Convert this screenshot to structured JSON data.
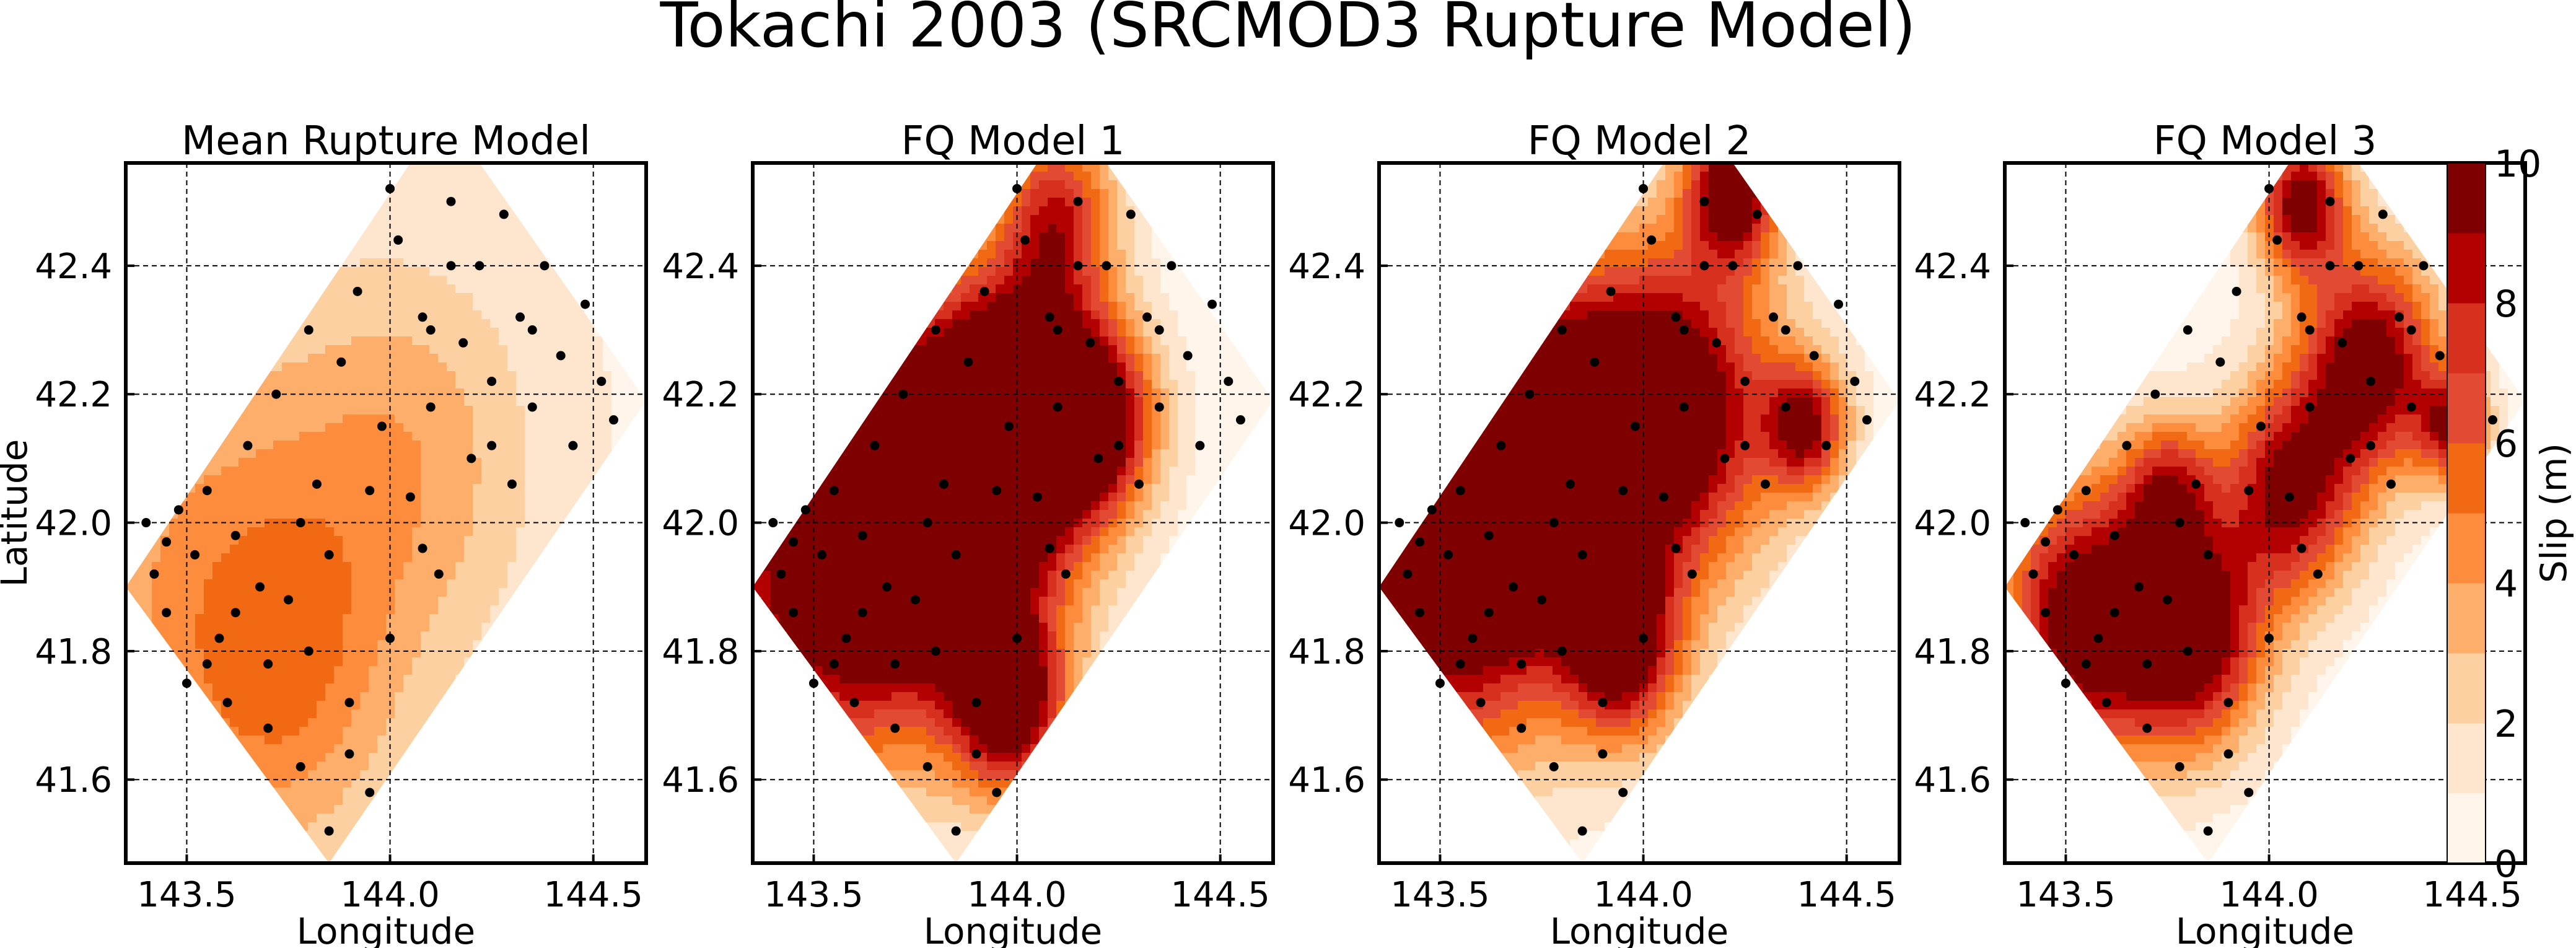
{
  "figure": {
    "title": "Tokachi 2003 (SRCMOD3 Rupture Model)"
  },
  "colorbar": {
    "label": "Slip (m)",
    "ticks": [
      0,
      2,
      4,
      6,
      8,
      10
    ],
    "levels": [
      0,
      1,
      2,
      3,
      4,
      5,
      6,
      7,
      8,
      9,
      10
    ],
    "colors": [
      "#fff5eb",
      "#fee6ce",
      "#fdd0a2",
      "#fdae6b",
      "#fd8d3c",
      "#f16913",
      "#e34a33",
      "#d7301f",
      "#b30000",
      "#7f0000"
    ]
  },
  "chart_data": [
    {
      "type": "heatmap",
      "title": "Mean Rupture Model",
      "xlabel": "Longitude",
      "ylabel": "Latitude",
      "xlim": [
        143.35,
        144.63
      ],
      "ylim": [
        41.47,
        42.56
      ],
      "xticks": [
        "143.5",
        "144.0",
        "144.5"
      ],
      "yticks": [
        "41.6",
        "41.8",
        "42.0",
        "42.2",
        "42.4"
      ],
      "grid": true,
      "fault_outline": [
        [
          143.35,
          41.9
        ],
        [
          143.85,
          41.47
        ],
        [
          144.63,
          42.19
        ],
        [
          144.22,
          42.56
        ],
        [
          144.05,
          42.56
        ]
      ],
      "slip_centers": [
        {
          "lon": 143.55,
          "lat": 41.9,
          "slip": 3.2,
          "spread": 0.3
        },
        {
          "lon": 144.05,
          "lat": 42.1,
          "slip": 2.6,
          "spread": 0.22
        },
        {
          "lon": 143.75,
          "lat": 41.75,
          "slip": 2.4,
          "spread": 0.18
        }
      ],
      "base_slip": 0.8,
      "stations": [
        [
          143.4,
          42.0
        ],
        [
          143.42,
          41.92
        ],
        [
          143.45,
          41.86
        ],
        [
          143.48,
          42.02
        ],
        [
          143.5,
          41.75
        ],
        [
          143.52,
          41.95
        ],
        [
          143.55,
          42.05
        ],
        [
          143.58,
          41.82
        ],
        [
          143.6,
          41.72
        ],
        [
          143.62,
          41.98
        ],
        [
          143.65,
          42.12
        ],
        [
          143.68,
          41.9
        ],
        [
          143.7,
          41.78
        ],
        [
          143.72,
          42.2
        ],
        [
          143.75,
          41.88
        ],
        [
          143.78,
          41.62
        ],
        [
          143.8,
          41.8
        ],
        [
          143.82,
          42.06
        ],
        [
          143.85,
          41.95
        ],
        [
          143.88,
          42.25
        ],
        [
          143.9,
          41.72
        ],
        [
          143.92,
          42.36
        ],
        [
          143.95,
          41.58
        ],
        [
          143.98,
          42.15
        ],
        [
          144.0,
          41.82
        ],
        [
          144.02,
          42.44
        ],
        [
          144.05,
          42.04
        ],
        [
          144.08,
          42.32
        ],
        [
          144.1,
          42.18
        ],
        [
          144.12,
          41.92
        ],
        [
          144.15,
          42.5
        ],
        [
          144.18,
          42.28
        ],
        [
          144.2,
          42.1
        ],
        [
          144.22,
          42.4
        ],
        [
          144.25,
          42.22
        ],
        [
          144.28,
          42.48
        ],
        [
          144.3,
          42.06
        ],
        [
          144.32,
          42.32
        ],
        [
          144.35,
          42.18
        ],
        [
          144.38,
          42.4
        ],
        [
          144.42,
          42.26
        ],
        [
          144.45,
          42.12
        ],
        [
          144.48,
          42.34
        ],
        [
          144.52,
          42.22
        ],
        [
          144.55,
          42.16
        ],
        [
          143.7,
          41.68
        ],
        [
          143.62,
          41.86
        ],
        [
          143.85,
          41.52
        ],
        [
          143.9,
          41.64
        ],
        [
          144.0,
          42.52
        ],
        [
          144.08,
          41.96
        ],
        [
          144.25,
          42.12
        ],
        [
          143.8,
          42.3
        ],
        [
          143.95,
          42.05
        ],
        [
          144.15,
          42.4
        ],
        [
          143.55,
          41.78
        ],
        [
          143.45,
          41.97
        ],
        [
          143.78,
          42.0
        ],
        [
          144.35,
          42.3
        ],
        [
          144.1,
          42.3
        ]
      ]
    },
    {
      "type": "heatmap",
      "title": "FQ Model 1",
      "xlabel": "Longitude",
      "xlim": [
        143.35,
        144.63
      ],
      "ylim": [
        41.47,
        42.56
      ],
      "xticks": [
        "143.5",
        "144.0",
        "144.5"
      ],
      "yticks": [
        "41.6",
        "41.8",
        "42.0",
        "42.2",
        "42.4"
      ],
      "grid": true,
      "fault_outline": [
        [
          143.35,
          41.9
        ],
        [
          143.85,
          41.47
        ],
        [
          144.63,
          42.19
        ],
        [
          144.22,
          42.56
        ],
        [
          144.05,
          42.56
        ]
      ],
      "slip_centers": [
        {
          "lon": 143.55,
          "lat": 41.95,
          "slip": 11.0,
          "spread": 0.22
        },
        {
          "lon": 143.85,
          "lat": 42.05,
          "slip": 10.5,
          "spread": 0.2
        },
        {
          "lon": 144.02,
          "lat": 42.18,
          "slip": 10.0,
          "spread": 0.14
        },
        {
          "lon": 143.98,
          "lat": 41.72,
          "slip": 9.5,
          "spread": 0.1
        },
        {
          "lon": 144.2,
          "lat": 42.16,
          "slip": 8.0,
          "spread": 0.1
        },
        {
          "lon": 144.1,
          "lat": 42.48,
          "slip": 7.0,
          "spread": 0.1
        }
      ],
      "base_slip": 0.3,
      "stations": [
        [
          143.4,
          42.0
        ],
        [
          143.42,
          41.92
        ],
        [
          143.45,
          41.86
        ],
        [
          143.48,
          42.02
        ],
        [
          143.5,
          41.75
        ],
        [
          143.52,
          41.95
        ],
        [
          143.55,
          42.05
        ],
        [
          143.58,
          41.82
        ],
        [
          143.6,
          41.72
        ],
        [
          143.62,
          41.98
        ],
        [
          143.65,
          42.12
        ],
        [
          143.68,
          41.9
        ],
        [
          143.7,
          41.78
        ],
        [
          143.72,
          42.2
        ],
        [
          143.75,
          41.88
        ],
        [
          143.78,
          41.62
        ],
        [
          143.8,
          41.8
        ],
        [
          143.82,
          42.06
        ],
        [
          143.85,
          41.95
        ],
        [
          143.88,
          42.25
        ],
        [
          143.9,
          41.72
        ],
        [
          143.92,
          42.36
        ],
        [
          143.95,
          41.58
        ],
        [
          143.98,
          42.15
        ],
        [
          144.0,
          41.82
        ],
        [
          144.02,
          42.44
        ],
        [
          144.05,
          42.04
        ],
        [
          144.08,
          42.32
        ],
        [
          144.1,
          42.18
        ],
        [
          144.12,
          41.92
        ],
        [
          144.15,
          42.5
        ],
        [
          144.18,
          42.28
        ],
        [
          144.2,
          42.1
        ],
        [
          144.22,
          42.4
        ],
        [
          144.25,
          42.22
        ],
        [
          144.28,
          42.48
        ],
        [
          144.3,
          42.06
        ],
        [
          144.32,
          42.32
        ],
        [
          144.35,
          42.18
        ],
        [
          144.38,
          42.4
        ],
        [
          144.42,
          42.26
        ],
        [
          144.45,
          42.12
        ],
        [
          144.48,
          42.34
        ],
        [
          144.52,
          42.22
        ],
        [
          144.55,
          42.16
        ],
        [
          143.7,
          41.68
        ],
        [
          143.62,
          41.86
        ],
        [
          143.85,
          41.52
        ],
        [
          143.9,
          41.64
        ],
        [
          144.0,
          42.52
        ],
        [
          144.08,
          41.96
        ],
        [
          144.25,
          42.12
        ],
        [
          143.8,
          42.3
        ],
        [
          143.95,
          42.05
        ],
        [
          144.15,
          42.4
        ],
        [
          143.55,
          41.78
        ],
        [
          143.45,
          41.97
        ],
        [
          143.78,
          42.0
        ],
        [
          144.35,
          42.3
        ],
        [
          144.1,
          42.3
        ]
      ]
    },
    {
      "type": "heatmap",
      "title": "FQ Model 2",
      "xlabel": "Longitude",
      "xlim": [
        143.35,
        144.63
      ],
      "ylim": [
        41.47,
        42.56
      ],
      "xticks": [
        "143.5",
        "144.0",
        "144.5"
      ],
      "yticks": [
        "41.6",
        "41.8",
        "42.0",
        "42.2",
        "42.4"
      ],
      "grid": true,
      "fault_outline": [
        [
          143.35,
          41.9
        ],
        [
          143.85,
          41.47
        ],
        [
          144.63,
          42.19
        ],
        [
          144.22,
          42.56
        ],
        [
          144.05,
          42.56
        ]
      ],
      "slip_centers": [
        {
          "lon": 143.5,
          "lat": 41.95,
          "slip": 11.5,
          "spread": 0.22
        },
        {
          "lon": 143.78,
          "lat": 42.1,
          "slip": 10.5,
          "spread": 0.18
        },
        {
          "lon": 144.08,
          "lat": 42.18,
          "slip": 10.0,
          "spread": 0.18
        },
        {
          "lon": 144.22,
          "lat": 42.52,
          "slip": 10.0,
          "spread": 0.08
        },
        {
          "lon": 143.95,
          "lat": 41.8,
          "slip": 8.5,
          "spread": 0.1
        },
        {
          "lon": 144.4,
          "lat": 42.15,
          "slip": 8.0,
          "spread": 0.07
        }
      ],
      "base_slip": 0.4,
      "stations": [
        [
          143.4,
          42.0
        ],
        [
          143.42,
          41.92
        ],
        [
          143.45,
          41.86
        ],
        [
          143.48,
          42.02
        ],
        [
          143.5,
          41.75
        ],
        [
          143.52,
          41.95
        ],
        [
          143.55,
          42.05
        ],
        [
          143.58,
          41.82
        ],
        [
          143.6,
          41.72
        ],
        [
          143.62,
          41.98
        ],
        [
          143.65,
          42.12
        ],
        [
          143.68,
          41.9
        ],
        [
          143.7,
          41.78
        ],
        [
          143.72,
          42.2
        ],
        [
          143.75,
          41.88
        ],
        [
          143.78,
          41.62
        ],
        [
          143.8,
          41.8
        ],
        [
          143.82,
          42.06
        ],
        [
          143.85,
          41.95
        ],
        [
          143.88,
          42.25
        ],
        [
          143.9,
          41.72
        ],
        [
          143.92,
          42.36
        ],
        [
          143.95,
          41.58
        ],
        [
          143.98,
          42.15
        ],
        [
          144.0,
          41.82
        ],
        [
          144.02,
          42.44
        ],
        [
          144.05,
          42.04
        ],
        [
          144.08,
          42.32
        ],
        [
          144.1,
          42.18
        ],
        [
          144.12,
          41.92
        ],
        [
          144.15,
          42.5
        ],
        [
          144.18,
          42.28
        ],
        [
          144.2,
          42.1
        ],
        [
          144.22,
          42.4
        ],
        [
          144.25,
          42.22
        ],
        [
          144.28,
          42.48
        ],
        [
          144.3,
          42.06
        ],
        [
          144.32,
          42.32
        ],
        [
          144.35,
          42.18
        ],
        [
          144.38,
          42.4
        ],
        [
          144.42,
          42.26
        ],
        [
          144.45,
          42.12
        ],
        [
          144.48,
          42.34
        ],
        [
          144.52,
          42.22
        ],
        [
          144.55,
          42.16
        ],
        [
          143.7,
          41.68
        ],
        [
          143.62,
          41.86
        ],
        [
          143.85,
          41.52
        ],
        [
          143.9,
          41.64
        ],
        [
          144.0,
          42.52
        ],
        [
          144.08,
          41.96
        ],
        [
          144.25,
          42.12
        ],
        [
          143.8,
          42.3
        ],
        [
          143.95,
          42.05
        ],
        [
          144.15,
          42.4
        ],
        [
          143.55,
          41.78
        ],
        [
          143.45,
          41.97
        ],
        [
          143.78,
          42.0
        ],
        [
          144.35,
          42.3
        ],
        [
          144.1,
          42.3
        ]
      ]
    },
    {
      "type": "heatmap",
      "title": "FQ Model 3",
      "xlabel": "Longitude",
      "xlim": [
        143.35,
        144.63
      ],
      "ylim": [
        41.47,
        42.56
      ],
      "xticks": [
        "143.5",
        "144.0",
        "144.5"
      ],
      "yticks": [
        "41.6",
        "41.8",
        "42.0",
        "42.2",
        "42.4"
      ],
      "grid": true,
      "fault_outline": [
        [
          143.35,
          41.9
        ],
        [
          143.85,
          41.47
        ],
        [
          144.63,
          42.19
        ],
        [
          144.22,
          42.56
        ],
        [
          144.05,
          42.56
        ]
      ],
      "slip_centers": [
        {
          "lon": 143.55,
          "lat": 41.85,
          "slip": 10.5,
          "spread": 0.15
        },
        {
          "lon": 143.82,
          "lat": 41.82,
          "slip": 9.5,
          "spread": 0.12
        },
        {
          "lon": 144.05,
          "lat": 42.05,
          "slip": 9.0,
          "spread": 0.12
        },
        {
          "lon": 144.25,
          "lat": 42.25,
          "slip": 10.0,
          "spread": 0.12
        },
        {
          "lon": 144.08,
          "lat": 42.5,
          "slip": 9.5,
          "spread": 0.08
        },
        {
          "lon": 143.75,
          "lat": 42.05,
          "slip": 6.5,
          "spread": 0.08
        },
        {
          "lon": 144.45,
          "lat": 42.15,
          "slip": 7.5,
          "spread": 0.06
        }
      ],
      "base_slip": 0.3,
      "stations": [
        [
          143.4,
          42.0
        ],
        [
          143.42,
          41.92
        ],
        [
          143.45,
          41.86
        ],
        [
          143.48,
          42.02
        ],
        [
          143.5,
          41.75
        ],
        [
          143.52,
          41.95
        ],
        [
          143.55,
          42.05
        ],
        [
          143.58,
          41.82
        ],
        [
          143.6,
          41.72
        ],
        [
          143.62,
          41.98
        ],
        [
          143.65,
          42.12
        ],
        [
          143.68,
          41.9
        ],
        [
          143.7,
          41.78
        ],
        [
          143.72,
          42.2
        ],
        [
          143.75,
          41.88
        ],
        [
          143.78,
          41.62
        ],
        [
          143.8,
          41.8
        ],
        [
          143.82,
          42.06
        ],
        [
          143.85,
          41.95
        ],
        [
          143.88,
          42.25
        ],
        [
          143.9,
          41.72
        ],
        [
          143.92,
          42.36
        ],
        [
          143.95,
          41.58
        ],
        [
          143.98,
          42.15
        ],
        [
          144.0,
          41.82
        ],
        [
          144.02,
          42.44
        ],
        [
          144.05,
          42.04
        ],
        [
          144.08,
          42.32
        ],
        [
          144.1,
          42.18
        ],
        [
          144.12,
          41.92
        ],
        [
          144.15,
          42.5
        ],
        [
          144.18,
          42.28
        ],
        [
          144.2,
          42.1
        ],
        [
          144.22,
          42.4
        ],
        [
          144.25,
          42.22
        ],
        [
          144.28,
          42.48
        ],
        [
          144.3,
          42.06
        ],
        [
          144.32,
          42.32
        ],
        [
          144.35,
          42.18
        ],
        [
          144.38,
          42.4
        ],
        [
          144.42,
          42.26
        ],
        [
          144.45,
          42.12
        ],
        [
          144.48,
          42.34
        ],
        [
          144.52,
          42.22
        ],
        [
          144.55,
          42.16
        ],
        [
          143.7,
          41.68
        ],
        [
          143.62,
          41.86
        ],
        [
          143.85,
          41.52
        ],
        [
          143.9,
          41.64
        ],
        [
          144.0,
          42.52
        ],
        [
          144.08,
          41.96
        ],
        [
          144.25,
          42.12
        ],
        [
          143.8,
          42.3
        ],
        [
          143.95,
          42.05
        ],
        [
          144.15,
          42.4
        ],
        [
          143.55,
          41.78
        ],
        [
          143.45,
          41.97
        ],
        [
          143.78,
          42.0
        ],
        [
          144.35,
          42.3
        ],
        [
          144.1,
          42.3
        ]
      ]
    }
  ]
}
